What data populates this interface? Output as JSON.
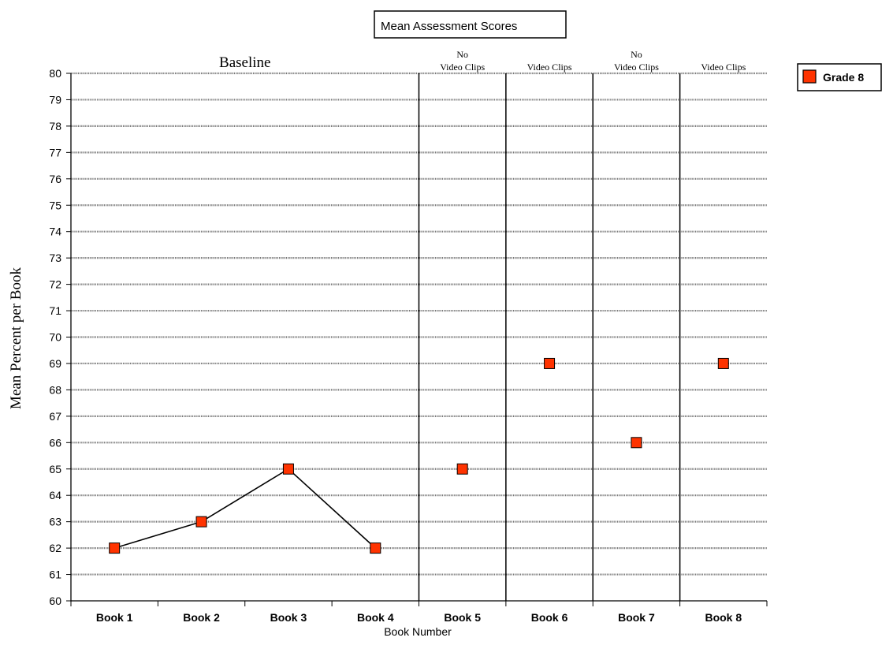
{
  "chart_data": {
    "type": "line",
    "title": "Mean Assessment Scores",
    "xlabel": "Book Number",
    "ylabel": "Mean Percent per Book",
    "categories": [
      "Book 1",
      "Book 2",
      "Book 3",
      "Book 4",
      "Book 5",
      "Book 6",
      "Book 7",
      "Book 8"
    ],
    "ylim": [
      60,
      80
    ],
    "yticks": [
      60,
      61,
      62,
      63,
      64,
      65,
      66,
      67,
      68,
      69,
      70,
      71,
      72,
      73,
      74,
      75,
      76,
      77,
      78,
      79,
      80
    ],
    "grid": true,
    "legend_position": "right",
    "series": [
      {
        "name": "Grade 8",
        "color": "#ff3300",
        "values": [
          62,
          63,
          65,
          62,
          65,
          69,
          66,
          69
        ],
        "connected_through": "Book 4"
      }
    ],
    "phases": [
      {
        "label": "Baseline",
        "categories": [
          "Book 1",
          "Book 2",
          "Book 3",
          "Book 4"
        ]
      },
      {
        "label": "No Video Clips",
        "label_lines": [
          "No",
          "Video Clips"
        ],
        "categories": [
          "Book 5"
        ]
      },
      {
        "label": "Video Clips",
        "label_lines": [
          "Video Clips"
        ],
        "categories": [
          "Book 6"
        ]
      },
      {
        "label": "No Video Clips",
        "label_lines": [
          "No",
          "Video Clips"
        ],
        "categories": [
          "Book 7"
        ]
      },
      {
        "label": "Video Clips",
        "label_lines": [
          "Video Clips"
        ],
        "categories": [
          "Book 8"
        ]
      }
    ]
  }
}
